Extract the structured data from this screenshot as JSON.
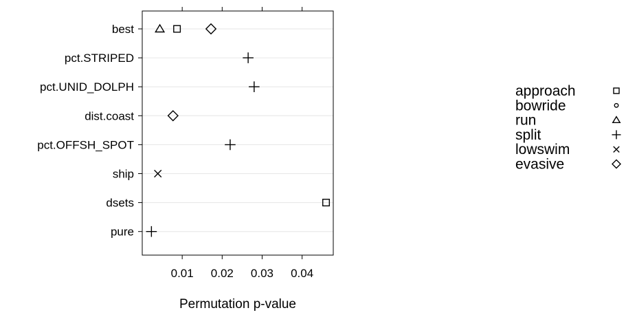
{
  "chart_data": {
    "type": "scatter",
    "xlabel": "Permutation p-value",
    "ylabel": "",
    "title": "",
    "xlim": [
      0.0,
      0.0478
    ],
    "x_ticks": [
      {
        "value": 0.01,
        "label": "0.01"
      },
      {
        "value": 0.02,
        "label": "0.02"
      },
      {
        "value": 0.03,
        "label": "0.03"
      },
      {
        "value": 0.04,
        "label": "0.04"
      }
    ],
    "categories": [
      "best",
      "pct.STRIPED",
      "pct.UNID_DOLPH",
      "dist.coast",
      "pct.OFFSH_SPOT",
      "ship",
      "dsets",
      "pure"
    ],
    "grid": "horizontal",
    "legend_position": "right",
    "series": [
      {
        "name": "approach",
        "marker": "square",
        "points": [
          {
            "category": "best",
            "x": 0.0087
          },
          {
            "category": "dsets",
            "x": 0.046
          }
        ]
      },
      {
        "name": "bowride",
        "marker": "circle",
        "points": []
      },
      {
        "name": "run",
        "marker": "triangle",
        "points": [
          {
            "category": "best",
            "x": 0.0044
          }
        ]
      },
      {
        "name": "split",
        "marker": "plus",
        "points": [
          {
            "category": "pct.STRIPED",
            "x": 0.0265
          },
          {
            "category": "pct.UNID_DOLPH",
            "x": 0.028
          },
          {
            "category": "pct.OFFSH_SPOT",
            "x": 0.022
          },
          {
            "category": "pure",
            "x": 0.0023
          }
        ]
      },
      {
        "name": "lowswim",
        "marker": "cross",
        "points": [
          {
            "category": "ship",
            "x": 0.0039
          }
        ]
      },
      {
        "name": "evasive",
        "marker": "diamond",
        "points": [
          {
            "category": "best",
            "x": 0.0172
          },
          {
            "category": "dist.coast",
            "x": 0.0077
          }
        ]
      }
    ]
  }
}
